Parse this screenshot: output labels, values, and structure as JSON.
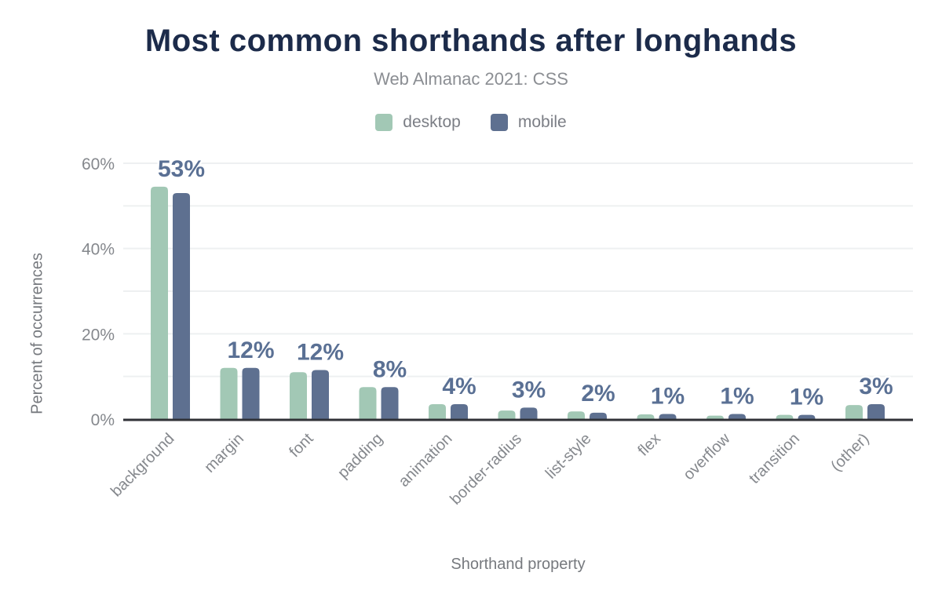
{
  "figure": {
    "title": "Most common shorthands after longhands",
    "subtitle": "Web Almanac 2021: CSS",
    "x_axis_title": "Shorthand property",
    "y_axis_title": "Percent of occurrences"
  },
  "colors": {
    "desktop": "#a2c8b5",
    "mobile": "#5e7090",
    "title": "#1c2b4a",
    "subtitle": "#8b8e93",
    "axis_text": "#85888d",
    "axis_title": "#76797e",
    "data_label": "#5a7094",
    "axis_line": "#303237",
    "gridline": "#eef0f1"
  },
  "chart_data": {
    "type": "bar",
    "title": "Most common shorthands after longhands",
    "subtitle": "Web Almanac 2021: CSS",
    "xlabel": "Shorthand property",
    "ylabel": "Percent of occurrences",
    "categories": [
      "background",
      "margin",
      "font",
      "padding",
      "animation",
      "border-radius",
      "list-style",
      "flex",
      "overflow",
      "transition",
      "(other)"
    ],
    "series": [
      {
        "name": "desktop",
        "color": "#a2c8b5",
        "values": [
          54.5,
          12,
          11,
          7.5,
          3.5,
          2,
          1.8,
          1.1,
          0.8,
          1,
          3.3
        ]
      },
      {
        "name": "mobile",
        "color": "#5e7090",
        "values": [
          53,
          12,
          11.5,
          7.5,
          3.5,
          2.7,
          1.5,
          1.2,
          1.2,
          1,
          3.5
        ]
      }
    ],
    "data_labels": [
      "53%",
      "12%",
      "12%",
      "8%",
      "4%",
      "3%",
      "2%",
      "1%",
      "1%",
      "1%",
      "3%"
    ],
    "ylim": [
      0,
      60
    ],
    "y_ticks": [
      {
        "value": 0,
        "label": "0%"
      },
      {
        "value": 20,
        "label": "20%"
      },
      {
        "value": 40,
        "label": "40%"
      },
      {
        "value": 60,
        "label": "60%"
      }
    ],
    "gridline_step": 10,
    "grid": true,
    "legend_position": "top",
    "x_tick_rotation": -45
  }
}
